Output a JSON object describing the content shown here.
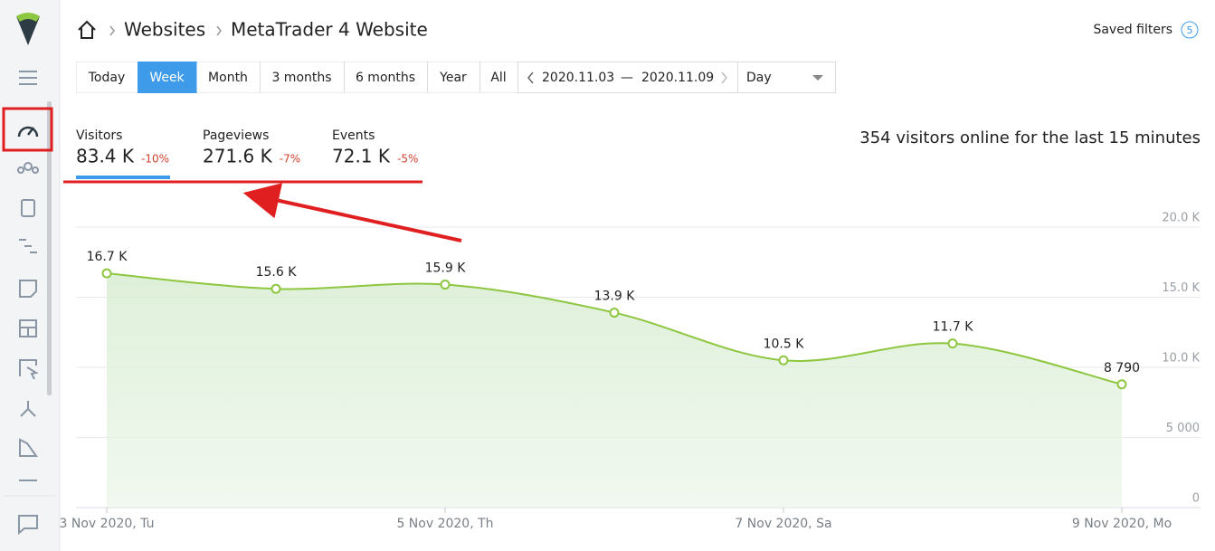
{
  "breadcrumb": [
    "Websites",
    "MetaTrader 4 Website"
  ],
  "saved_filters": {
    "label": "Saved filters",
    "count": "5"
  },
  "periods": [
    "Today",
    "Week",
    "Month",
    "3 months",
    "6 months",
    "Year",
    "All"
  ],
  "date_range": {
    "from": "2020.11.03",
    "separator": "—",
    "to": "2020.11.09"
  },
  "granularity": "Day",
  "metrics": [
    {
      "label": "Visitors",
      "value": "83.4 K",
      "change": "-10%"
    },
    {
      "label": "Pageviews",
      "value": "271.6 K",
      "change": "-7%"
    },
    {
      "label": "Events",
      "value": "72.1 K",
      "change": "-5%"
    }
  ],
  "online": "354 visitors online for the last 15 minutes",
  "chart_data": {
    "type": "area",
    "categories": [
      "3 Nov 2020, Tu",
      null,
      "5 Nov 2020, Th",
      null,
      "7 Nov 2020, Sa",
      null,
      "9 Nov 2020, Mo"
    ],
    "values": [
      16700,
      15600,
      15900,
      13900,
      10500,
      11700,
      8790
    ],
    "value_labels": [
      "16.7 K",
      "15.6 K",
      "15.9 K",
      "13.9 K",
      "10.5 K",
      "11.7 K",
      "8 790"
    ],
    "color": "#8dc63f",
    "ylim": [
      0,
      20000
    ],
    "yticks": [
      0,
      {
        "value": 5000,
        "label": "5 000"
      },
      {
        "value": 10000,
        "label": "10.0 K"
      },
      {
        "value": 15000,
        "label": "15.0 K"
      },
      {
        "value": 20000,
        "label": "20.0 K"
      }
    ],
    "grid": true
  }
}
